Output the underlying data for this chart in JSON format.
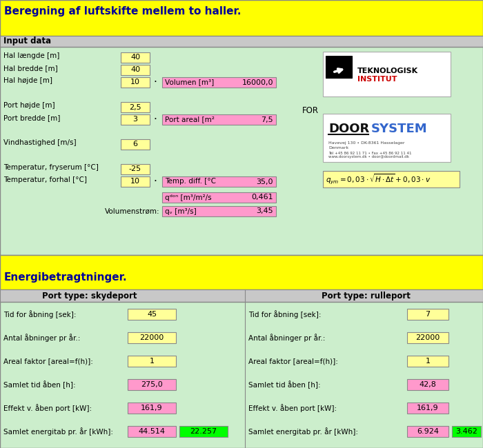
{
  "title1": "Beregning af luftskifte mellem to haller.",
  "title2": "Energibetragtninger.",
  "section1_label": "Input data",
  "section2_label": "Port type: skydeport",
  "section3_label": "Port type: rulleport",
  "bg_yellow": "#FFFF00",
  "bg_green": "#CCEECC",
  "bg_gray": "#C8C8C8",
  "bg_pink": "#FF99CC",
  "bg_lightyellow": "#FFFF99",
  "bg_bright_green": "#00FF00",
  "bg_white": "#FFFFFF",
  "energy_left": [
    {
      "label": "Tid for åbning [sek]:",
      "value": "45",
      "value_bg": "#FFFF99"
    },
    {
      "label": "Antal åbninger pr år.:",
      "value": "22000",
      "value_bg": "#FFFF99"
    },
    {
      "label": "Areal faktor [areal=f(h)]:",
      "value": "1",
      "value_bg": "#FFFF99"
    },
    {
      "label": "Samlet tid åben [h]:",
      "value": "275,0",
      "value_bg": "#FF99CC"
    },
    {
      "label": "Effekt v. åben port [kW]:",
      "value": "161,9",
      "value_bg": "#FF99CC"
    },
    {
      "label": "Samlet energitab pr. år [kWh]:",
      "value1": "44.514",
      "value1_bg": "#FF99CC",
      "value2": "22.257",
      "value2_bg": "#00FF00"
    }
  ],
  "energy_right": [
    {
      "label": "Tid for åbning [sek]:",
      "value": "7",
      "value_bg": "#FFFF99"
    },
    {
      "label": "Antal åbninger pr år.:",
      "value": "22000",
      "value_bg": "#FFFF99"
    },
    {
      "label": "Areal faktor [areal=f(h)]:",
      "value": "1",
      "value_bg": "#FFFF99"
    },
    {
      "label": "Samlet tid åben [h]:",
      "value": "42,8",
      "value_bg": "#FF99CC"
    },
    {
      "label": "Effekt v. åben port [kW]:",
      "value": "161,9",
      "value_bg": "#FF99CC"
    },
    {
      "label": "Samlet energitab pr. år [kWh]:",
      "value1": "6.924",
      "value1_bg": "#FF99CC",
      "value2": "3.462",
      "value2_bg": "#00FF00"
    }
  ]
}
